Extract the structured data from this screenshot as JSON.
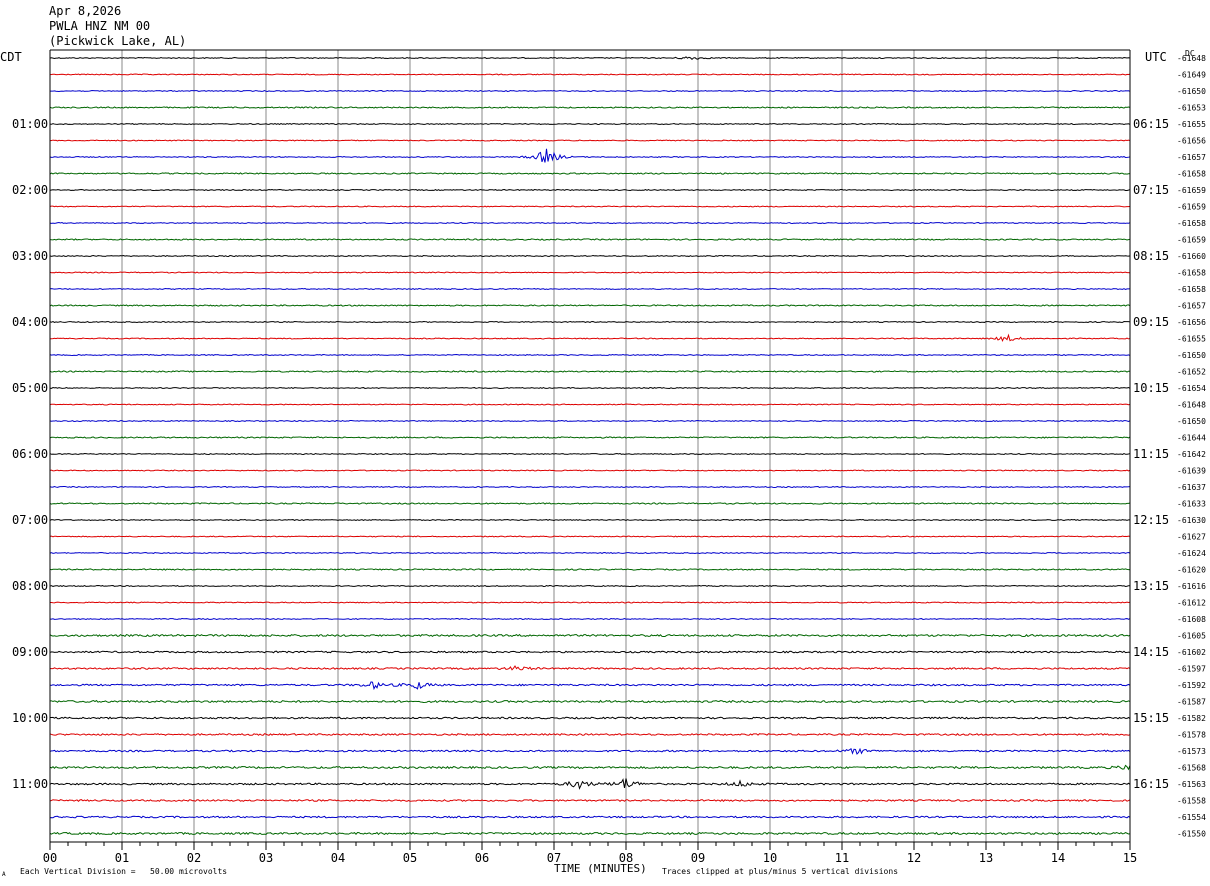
{
  "header": {
    "date": "Apr 8,2026",
    "station": "PWLA HNZ NM 00",
    "location": "(Pickwick Lake, AL)"
  },
  "left_tz": "CDT",
  "right_tz": "UTC",
  "dc_label": "DC",
  "footer": {
    "scale_note": "Each Vertical Division =   50.00 microvolts",
    "clip_note": "Traces clipped at plus/minus 5 vertical divisions",
    "corner_mark": "A"
  },
  "chart_data": {
    "type": "line",
    "title": "PWLA HNZ NM 00",
    "xlabel": "TIME (MINUTES)",
    "ylabel": "",
    "xlim": [
      0,
      15
    ],
    "x_ticks": [
      "00",
      "01",
      "02",
      "03",
      "04",
      "05",
      "06",
      "07",
      "08",
      "09",
      "10",
      "11",
      "12",
      "13",
      "14",
      "15"
    ],
    "trace_colors": [
      "#000000",
      "#dd0000",
      "#0000cc",
      "#006600"
    ],
    "left_hour_labels": [
      "01:00",
      "02:00",
      "03:00",
      "04:00",
      "05:00",
      "06:00",
      "07:00",
      "08:00",
      "09:00",
      "10:00",
      "11:00"
    ],
    "right_hour_labels": [
      "06:15",
      "07:15",
      "08:15",
      "09:15",
      "10:15",
      "11:15",
      "12:15",
      "13:15",
      "14:15",
      "15:15",
      "16:15"
    ],
    "dc_offsets": [
      "-61648",
      "-61649",
      "-61650",
      "-61653",
      "-61655",
      "-61656",
      "-61657",
      "-61658",
      "-61659",
      "-61659",
      "-61658",
      "-61659",
      "-61660",
      "-61658",
      "-61658",
      "-61657",
      "-61656",
      "-61655",
      "-61650",
      "-61652",
      "-61654",
      "-61648",
      "-61650",
      "-61644",
      "-61642",
      "-61639",
      "-61637",
      "-61633",
      "-61630",
      "-61627",
      "-61624",
      "-61620",
      "-61616",
      "-61612",
      "-61608",
      "-61605",
      "-61602",
      "-61597",
      "-61592",
      "-61587",
      "-61582",
      "-61578",
      "-61573",
      "-61568",
      "-61563",
      "-61558",
      "-61554",
      "-61550"
    ],
    "events": [
      {
        "trace": 0,
        "minute": 8.9,
        "amp": 2.0
      },
      {
        "trace": 6,
        "minute": 6.9,
        "amp": 9.0
      },
      {
        "trace": 17,
        "minute": 13.3,
        "amp": 3.5
      },
      {
        "trace": 37,
        "minute": 6.5,
        "amp": 2.5
      },
      {
        "trace": 38,
        "minute": 4.5,
        "amp": 3.5
      },
      {
        "trace": 38,
        "minute": 5.1,
        "amp": 4.0
      },
      {
        "trace": 42,
        "minute": 11.2,
        "amp": 3.0
      },
      {
        "trace": 43,
        "minute": 15.0,
        "amp": 3.0
      },
      {
        "trace": 44,
        "minute": 7.35,
        "amp": 5.0
      },
      {
        "trace": 44,
        "minute": 8.0,
        "amp": 6.0
      },
      {
        "trace": 44,
        "minute": 9.6,
        "amp": 3.0
      }
    ]
  }
}
